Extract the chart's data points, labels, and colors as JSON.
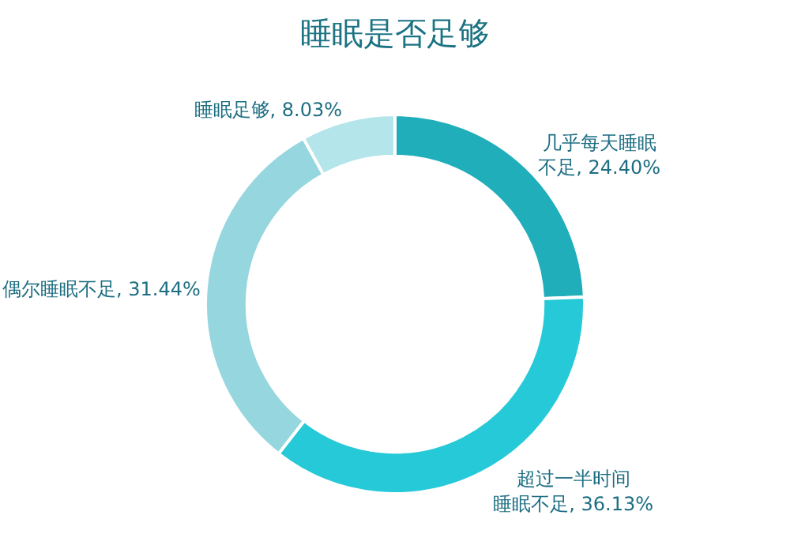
{
  "chart_data": {
    "type": "donut",
    "title": "睡眠是否足够",
    "categories": [
      "几乎每天睡眠不足",
      "超过一半时间睡眠不足",
      "偶尔睡眠不足",
      "睡眠足够"
    ],
    "values": [
      24.4,
      36.13,
      31.44,
      8.03
    ],
    "value_labels": [
      "24.40%",
      "36.13%",
      "31.44%",
      "8.03%"
    ],
    "colors": [
      "#20aebb",
      "#25c9d7",
      "#95d6df",
      "#b3e5ea"
    ],
    "legend": false
  }
}
